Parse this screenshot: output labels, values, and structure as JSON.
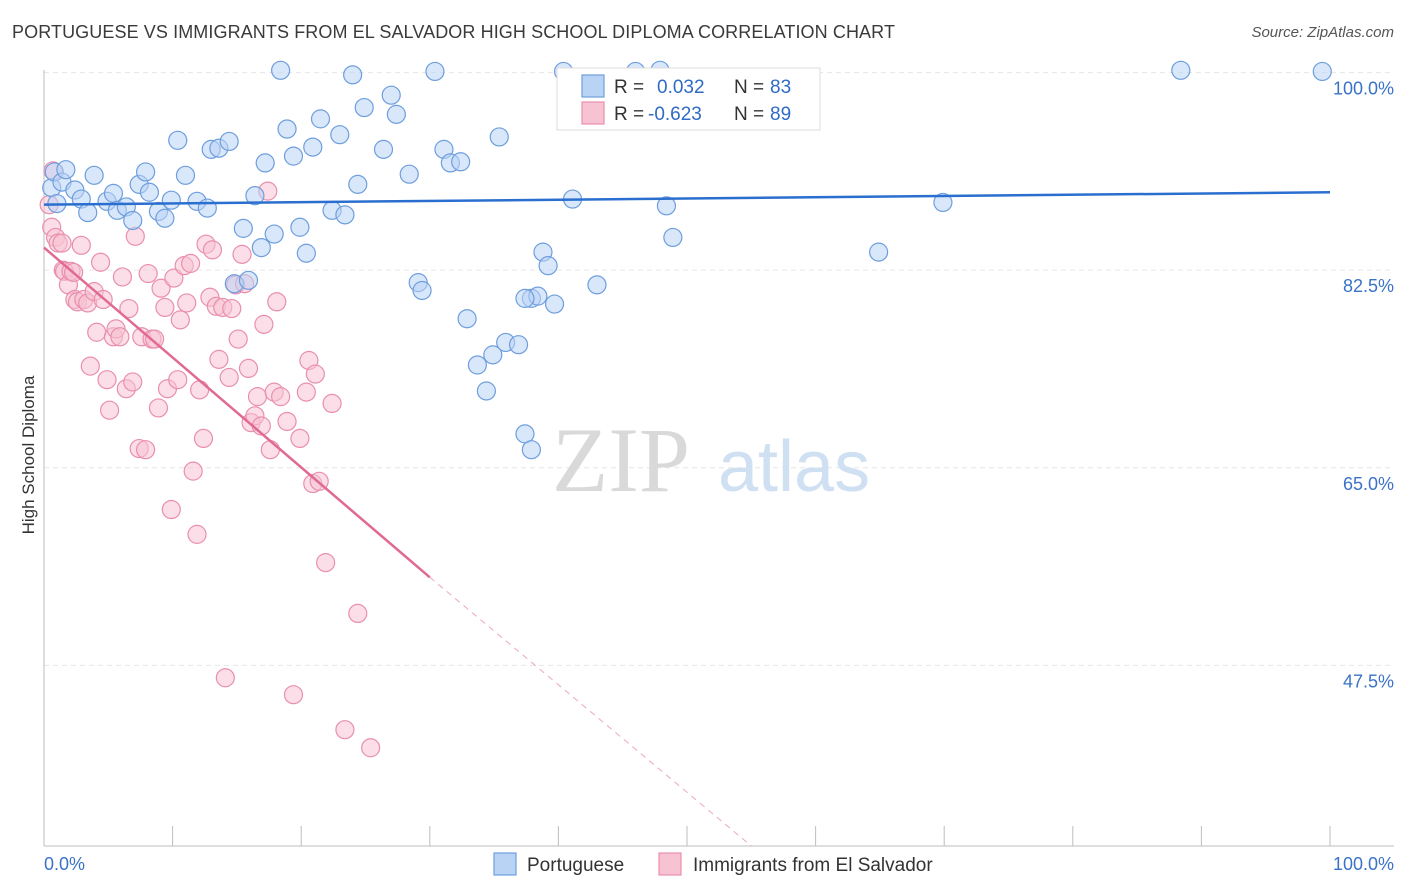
{
  "header": {
    "title": "PORTUGUESE VS IMMIGRANTS FROM EL SALVADOR HIGH SCHOOL DIPLOMA CORRELATION CHART",
    "source": "Source: ZipAtlas.com"
  },
  "watermark": {
    "zip": "ZIP",
    "atlas": "atlas"
  },
  "colors": {
    "blue_fill": "#b9d3f5",
    "blue_stroke": "#6e9edd",
    "blue_line": "#2a6fcf",
    "pink_fill": "#f7c3d3",
    "pink_stroke": "#e98fad",
    "pink_line": "#e06a94",
    "axis_text": "#3a72c8",
    "grid": "#e6e6e6"
  },
  "legend": {
    "rows": [
      {
        "r_label": "R =",
        "r_value": "0.032",
        "n_label": "N =",
        "n_value": "83"
      },
      {
        "r_label": "R =",
        "r_value": "-0.623",
        "n_label": "N =",
        "n_value": "89"
      }
    ]
  },
  "bottom_legend": [
    "Portuguese",
    "Immigrants from El Salvador"
  ],
  "chart_data": {
    "type": "scatter",
    "title": "PORTUGUESE VS IMMIGRANTS FROM EL SALVADOR HIGH SCHOOL DIPLOMA CORRELATION CHART",
    "xlabel": "",
    "ylabel": "High School Diploma",
    "xlim": [
      0,
      100
    ],
    "ylim": [
      31.5,
      102
    ],
    "x_tick_labels": [
      "0.0%",
      "100.0%"
    ],
    "y_ticks": [
      {
        "value": 100.0,
        "label": "100.0%"
      },
      {
        "value": 82.5,
        "label": "82.5%"
      },
      {
        "value": 65.0,
        "label": "65.0%"
      },
      {
        "value": 47.5,
        "label": "47.5%"
      }
    ],
    "series": [
      {
        "name": "Portuguese",
        "R": 0.032,
        "N": 83,
        "trend": {
          "x": [
            0,
            100
          ],
          "y": [
            88.3,
            89.4
          ],
          "dashed_after": null
        },
        "points": [
          [
            0.6,
            89.8
          ],
          [
            0.8,
            91.2
          ],
          [
            1.0,
            88.4
          ],
          [
            1.4,
            90.3
          ],
          [
            1.7,
            91.4
          ],
          [
            2.4,
            89.6
          ],
          [
            2.9,
            88.8
          ],
          [
            3.4,
            87.6
          ],
          [
            3.9,
            90.9
          ],
          [
            4.9,
            88.6
          ],
          [
            5.4,
            89.3
          ],
          [
            5.7,
            87.8
          ],
          [
            6.4,
            88.1
          ],
          [
            6.9,
            86.9
          ],
          [
            7.4,
            90.1
          ],
          [
            7.9,
            91.2
          ],
          [
            8.2,
            89.4
          ],
          [
            8.9,
            87.7
          ],
          [
            9.4,
            87.1
          ],
          [
            9.9,
            88.7
          ],
          [
            10.4,
            94.0
          ],
          [
            11.0,
            90.9
          ],
          [
            11.9,
            88.6
          ],
          [
            12.7,
            88.0
          ],
          [
            13.0,
            93.2
          ],
          [
            13.6,
            93.3
          ],
          [
            14.4,
            93.9
          ],
          [
            14.8,
            81.3
          ],
          [
            15.5,
            86.2
          ],
          [
            15.9,
            81.6
          ],
          [
            16.4,
            89.1
          ],
          [
            16.9,
            84.5
          ],
          [
            17.2,
            92.0
          ],
          [
            17.9,
            85.7
          ],
          [
            18.4,
            100.2
          ],
          [
            18.9,
            95.0
          ],
          [
            19.4,
            92.6
          ],
          [
            19.9,
            86.3
          ],
          [
            20.4,
            84.0
          ],
          [
            20.9,
            93.4
          ],
          [
            21.5,
            95.9
          ],
          [
            22.4,
            87.8
          ],
          [
            23.0,
            94.5
          ],
          [
            23.4,
            87.4
          ],
          [
            24.0,
            99.8
          ],
          [
            24.4,
            90.1
          ],
          [
            24.9,
            96.9
          ],
          [
            26.4,
            93.2
          ],
          [
            27.0,
            98.0
          ],
          [
            27.4,
            96.3
          ],
          [
            28.4,
            91.0
          ],
          [
            29.1,
            81.4
          ],
          [
            29.4,
            80.7
          ],
          [
            30.4,
            100.1
          ],
          [
            31.1,
            93.2
          ],
          [
            31.6,
            92.0
          ],
          [
            32.4,
            92.1
          ],
          [
            32.9,
            78.2
          ],
          [
            33.7,
            74.1
          ],
          [
            34.4,
            71.8
          ],
          [
            34.9,
            75.0
          ],
          [
            35.4,
            94.3
          ],
          [
            35.9,
            76.1
          ],
          [
            36.9,
            75.9
          ],
          [
            37.4,
            68.0
          ],
          [
            37.9,
            66.6
          ],
          [
            37.9,
            80.0
          ],
          [
            38.4,
            80.2
          ],
          [
            38.8,
            84.1
          ],
          [
            39.2,
            82.9
          ],
          [
            39.7,
            79.5
          ],
          [
            40.4,
            100.1
          ],
          [
            41.1,
            88.8
          ],
          [
            43.0,
            81.2
          ],
          [
            46.0,
            100.1
          ],
          [
            47.9,
            100.2
          ],
          [
            48.4,
            88.2
          ],
          [
            48.9,
            85.4
          ],
          [
            64.9,
            84.1
          ],
          [
            69.9,
            88.5
          ],
          [
            88.4,
            100.2
          ],
          [
            99.4,
            100.1
          ],
          [
            37.4,
            80.0
          ]
        ]
      },
      {
        "name": "Immigrants from El Salvador",
        "R": -0.623,
        "N": 89,
        "trend": {
          "x": [
            0,
            30
          ],
          "y": [
            84.5,
            55.3
          ],
          "dashed_to": [
            55.0,
            31.5
          ]
        },
        "points": [
          [
            0.4,
            88.3
          ],
          [
            0.6,
            86.3
          ],
          [
            0.7,
            91.3
          ],
          [
            0.9,
            85.4
          ],
          [
            1.1,
            84.9
          ],
          [
            1.4,
            84.9
          ],
          [
            1.5,
            82.5
          ],
          [
            1.6,
            82.4
          ],
          [
            1.9,
            81.2
          ],
          [
            2.1,
            82.4
          ],
          [
            2.3,
            82.3
          ],
          [
            2.4,
            79.9
          ],
          [
            2.6,
            79.7
          ],
          [
            2.9,
            84.7
          ],
          [
            3.1,
            79.9
          ],
          [
            3.4,
            79.6
          ],
          [
            3.6,
            74.0
          ],
          [
            3.9,
            80.6
          ],
          [
            4.1,
            77.0
          ],
          [
            4.4,
            83.2
          ],
          [
            4.6,
            79.9
          ],
          [
            4.9,
            72.8
          ],
          [
            5.1,
            70.1
          ],
          [
            5.4,
            76.6
          ],
          [
            5.6,
            77.3
          ],
          [
            5.9,
            76.6
          ],
          [
            6.1,
            81.9
          ],
          [
            6.4,
            72.0
          ],
          [
            6.6,
            79.1
          ],
          [
            6.9,
            72.6
          ],
          [
            7.1,
            85.5
          ],
          [
            7.4,
            66.7
          ],
          [
            7.6,
            76.6
          ],
          [
            7.9,
            66.6
          ],
          [
            8.1,
            82.2
          ],
          [
            8.4,
            76.4
          ],
          [
            8.6,
            76.4
          ],
          [
            8.9,
            70.3
          ],
          [
            9.1,
            80.9
          ],
          [
            9.4,
            79.2
          ],
          [
            9.6,
            72.0
          ],
          [
            9.9,
            61.3
          ],
          [
            10.1,
            81.8
          ],
          [
            10.4,
            72.8
          ],
          [
            10.6,
            78.1
          ],
          [
            10.9,
            82.9
          ],
          [
            11.1,
            79.6
          ],
          [
            11.4,
            83.1
          ],
          [
            11.6,
            64.7
          ],
          [
            11.9,
            59.1
          ],
          [
            12.1,
            71.9
          ],
          [
            12.4,
            67.6
          ],
          [
            12.6,
            84.8
          ],
          [
            12.9,
            80.1
          ],
          [
            13.1,
            84.3
          ],
          [
            13.4,
            79.3
          ],
          [
            13.6,
            74.6
          ],
          [
            13.9,
            79.2
          ],
          [
            14.1,
            46.4
          ],
          [
            14.4,
            73.0
          ],
          [
            14.6,
            79.1
          ],
          [
            14.9,
            81.2
          ],
          [
            15.1,
            76.4
          ],
          [
            15.4,
            83.9
          ],
          [
            15.6,
            81.3
          ],
          [
            15.9,
            73.8
          ],
          [
            16.1,
            69.0
          ],
          [
            16.4,
            69.6
          ],
          [
            16.6,
            71.3
          ],
          [
            16.9,
            68.7
          ],
          [
            17.1,
            77.7
          ],
          [
            17.4,
            89.5
          ],
          [
            17.6,
            66.6
          ],
          [
            17.9,
            71.7
          ],
          [
            18.1,
            79.7
          ],
          [
            18.4,
            71.3
          ],
          [
            18.9,
            69.1
          ],
          [
            19.4,
            44.9
          ],
          [
            19.9,
            67.6
          ],
          [
            20.4,
            71.7
          ],
          [
            20.6,
            74.5
          ],
          [
            20.9,
            63.6
          ],
          [
            21.1,
            73.3
          ],
          [
            21.4,
            63.8
          ],
          [
            21.9,
            56.6
          ],
          [
            22.4,
            70.7
          ],
          [
            23.4,
            41.8
          ],
          [
            24.4,
            52.1
          ],
          [
            25.4,
            40.2
          ]
        ]
      }
    ]
  }
}
